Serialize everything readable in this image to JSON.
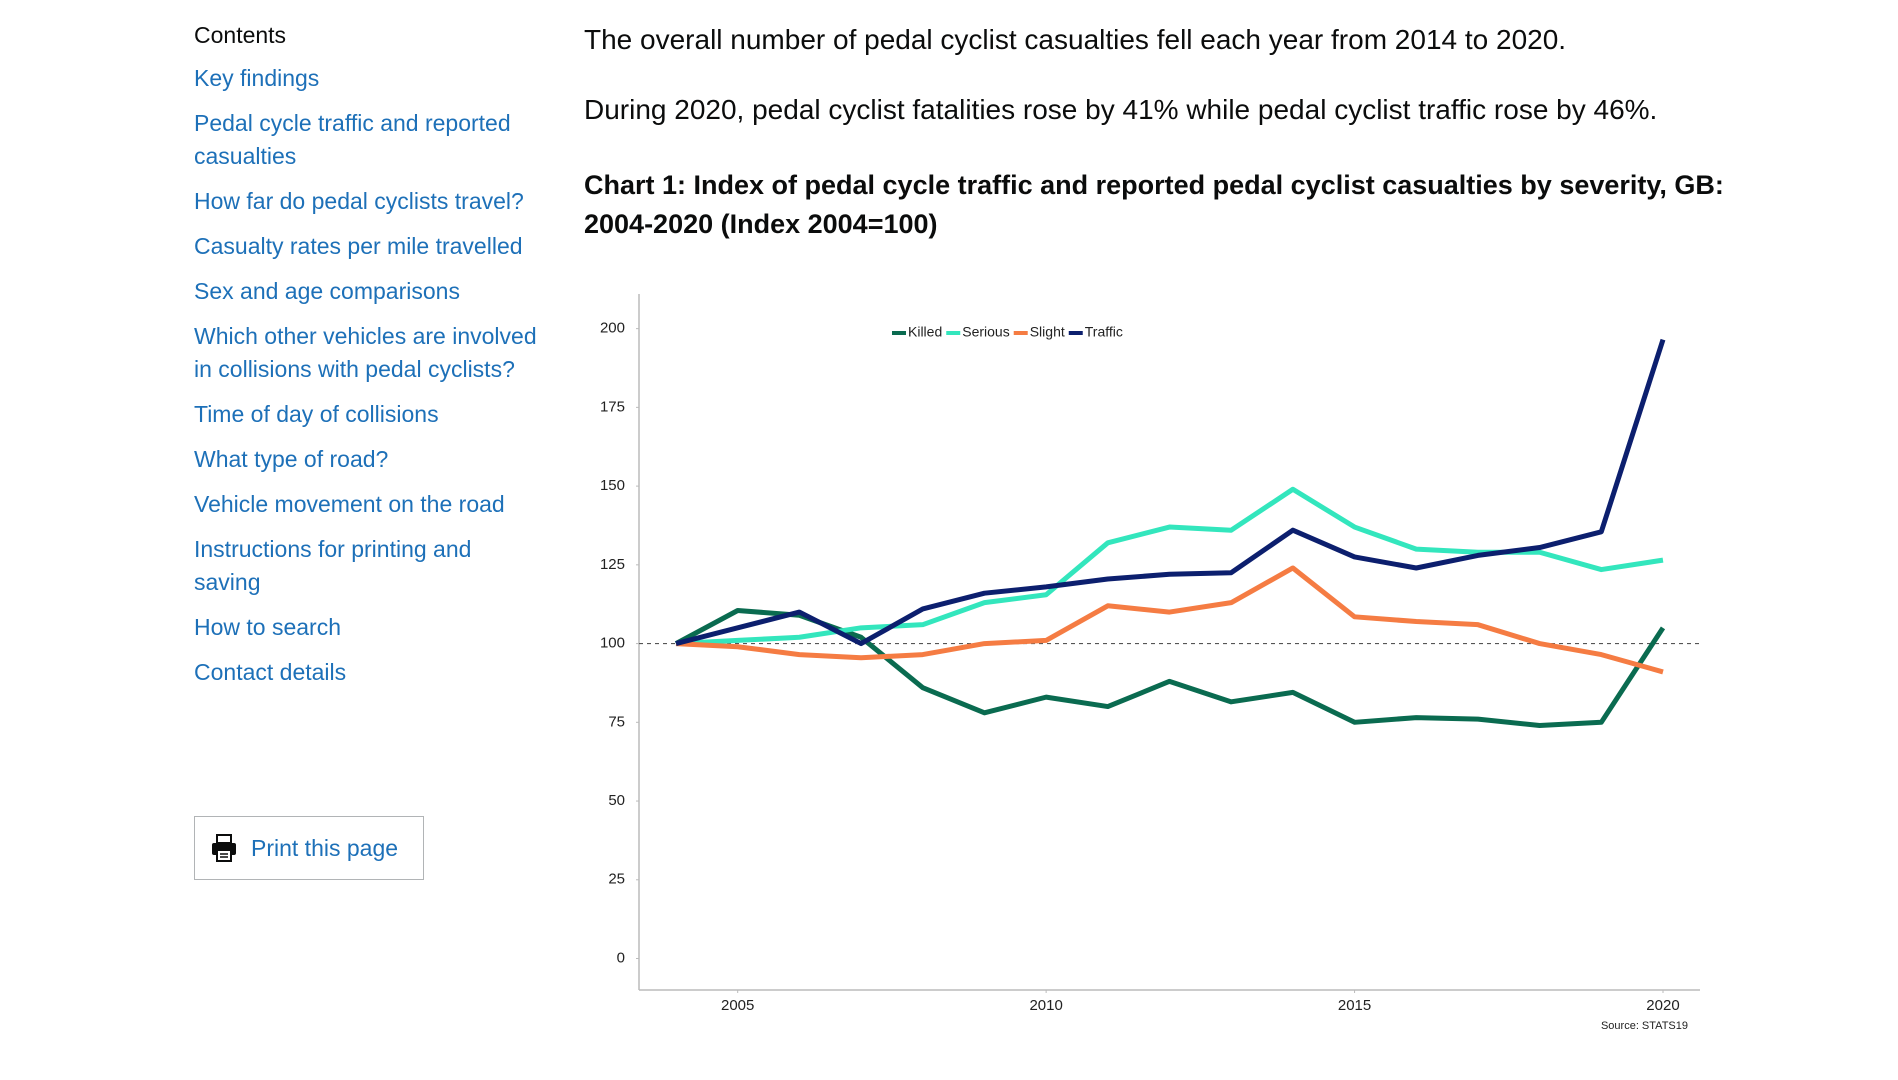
{
  "nav": {
    "heading": "Contents",
    "links": [
      "Key findings",
      "Pedal cycle traffic and reported casualties",
      "How far do pedal cyclists travel?",
      "Casualty rates per mile travelled",
      "Sex and age comparisons",
      "Which other vehicles are involved in collisions with pedal cyclists?",
      "Time of day of collisions",
      "What type of road?",
      "Vehicle movement on the road",
      "Instructions for printing and saving",
      "How to search",
      "Contact details"
    ],
    "print_button": "Print this page"
  },
  "paragraphs": [
    "The overall number of pedal cyclist casualties fell each year from 2014 to 2020.",
    "During 2020, pedal cyclist fatalities rose by 41% while pedal cyclist traffic rose by 46%."
  ],
  "chart_heading": "Chart 1: Index of pedal cycle traffic and reported pedal cyclist casualties by severity, GB: 2004-2020 (Index 2004=100)",
  "chart_data": {
    "type": "line",
    "x": [
      2004,
      2005,
      2006,
      2007,
      2008,
      2009,
      2010,
      2011,
      2012,
      2013,
      2014,
      2015,
      2016,
      2017,
      2018,
      2019,
      2020
    ],
    "series": [
      {
        "name": "Killed",
        "color": "#0a6b50",
        "values": [
          100,
          110.5,
          109,
          102,
          86,
          78,
          83,
          80,
          88,
          81.5,
          84.5,
          75,
          76.5,
          76,
          74,
          75,
          105
        ]
      },
      {
        "name": "Serious",
        "color": "#33e6bd",
        "values": [
          100,
          101,
          102,
          105,
          106,
          113,
          115.5,
          132,
          137,
          136,
          149,
          137,
          130,
          129,
          129,
          123.5,
          126.5
        ]
      },
      {
        "name": "Slight",
        "color": "#f57c43",
        "values": [
          100,
          99,
          96.5,
          95.5,
          96.5,
          100,
          101,
          112,
          110,
          113,
          124,
          108.5,
          107,
          106,
          100,
          96.5,
          91
        ]
      },
      {
        "name": "Traffic",
        "color": "#0c1f6e",
        "values": [
          100,
          105,
          110,
          100,
          111,
          116,
          118,
          120.5,
          122,
          122.5,
          136,
          127.5,
          124,
          128,
          130.5,
          135.5,
          196.5
        ]
      }
    ],
    "reference_line": 100,
    "xlim": [
      2003.4,
      2020.6
    ],
    "xticks": [
      2005,
      2010,
      2015,
      2020
    ],
    "ylim": [
      -10,
      211
    ],
    "yticks": [
      0,
      25,
      50,
      75,
      100,
      125,
      150,
      175,
      200
    ],
    "legend": "top",
    "source": "Source: STATS19"
  }
}
